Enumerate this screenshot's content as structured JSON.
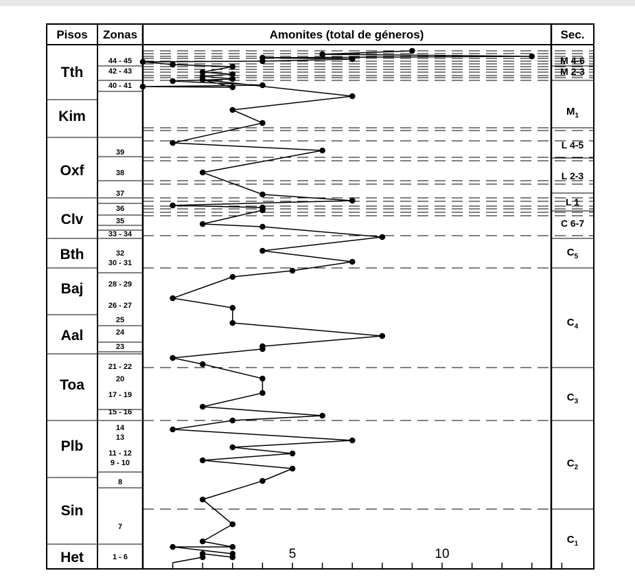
{
  "header": {
    "pisos": "Pisos",
    "zonas": "Zonas",
    "amonites": "Amonites (total de géneros)",
    "sec": "Sec."
  },
  "stages": [
    "Tth",
    "Kim",
    "Oxf",
    "Clv",
    "Bth",
    "Baj",
    "Aal",
    "Toa",
    "Plb",
    "Sin",
    "Het"
  ],
  "zones": [
    "44 - 45",
    "42 - 43",
    "40 - 41",
    "39",
    "38",
    "37",
    "36",
    "35",
    "33 - 34",
    "32",
    "30 - 31",
    "28 - 29",
    "26 - 27",
    "25",
    "24",
    "23",
    "21 - 22",
    "20",
    "17 - 19",
    "15 - 16",
    "14",
    "13",
    "11 - 12",
    "9 - 10",
    "8",
    "7",
    "1 - 6"
  ],
  "sequences": [
    {
      "main": "M 4-6",
      "sub": ""
    },
    {
      "main": "M 2-3",
      "sub": ""
    },
    {
      "main": "M",
      "sub": "1"
    },
    {
      "main": "L 4-5",
      "sub": ""
    },
    {
      "main": "L 2-3",
      "sub": ""
    },
    {
      "main": "L 1",
      "sub": ""
    },
    {
      "main": "C 6-7",
      "sub": ""
    },
    {
      "main": "C",
      "sub": "5"
    },
    {
      "main": "C",
      "sub": "4"
    },
    {
      "main": "C",
      "sub": "3"
    },
    {
      "main": "C",
      "sub": "2"
    },
    {
      "main": "C",
      "sub": "1"
    }
  ],
  "chart_data": {
    "type": "line",
    "title": "Amonites (total de géneros)",
    "xlabel": "Amonites (total de géneros)",
    "ylabel": "",
    "xlim": [
      0,
      14
    ],
    "x_ticks": [
      5,
      10
    ],
    "grid": "dashed horizontal lines at zone boundaries",
    "series": [
      {
        "values": [
          1,
          2,
          2,
          3,
          3,
          1,
          3,
          2,
          3,
          2,
          4,
          5,
          2,
          5,
          3,
          7,
          1,
          3,
          6,
          2,
          4,
          4,
          2,
          1,
          4,
          4,
          8,
          3,
          3,
          1,
          3,
          5,
          7,
          4,
          8,
          4,
          2,
          4,
          4,
          1,
          7,
          4,
          2,
          6,
          1,
          4,
          3,
          7,
          2,
          3,
          0,
          4,
          1,
          3,
          2,
          3,
          2,
          3,
          1,
          0,
          4,
          7,
          4,
          13,
          6,
          9
        ]
      }
    ]
  }
}
